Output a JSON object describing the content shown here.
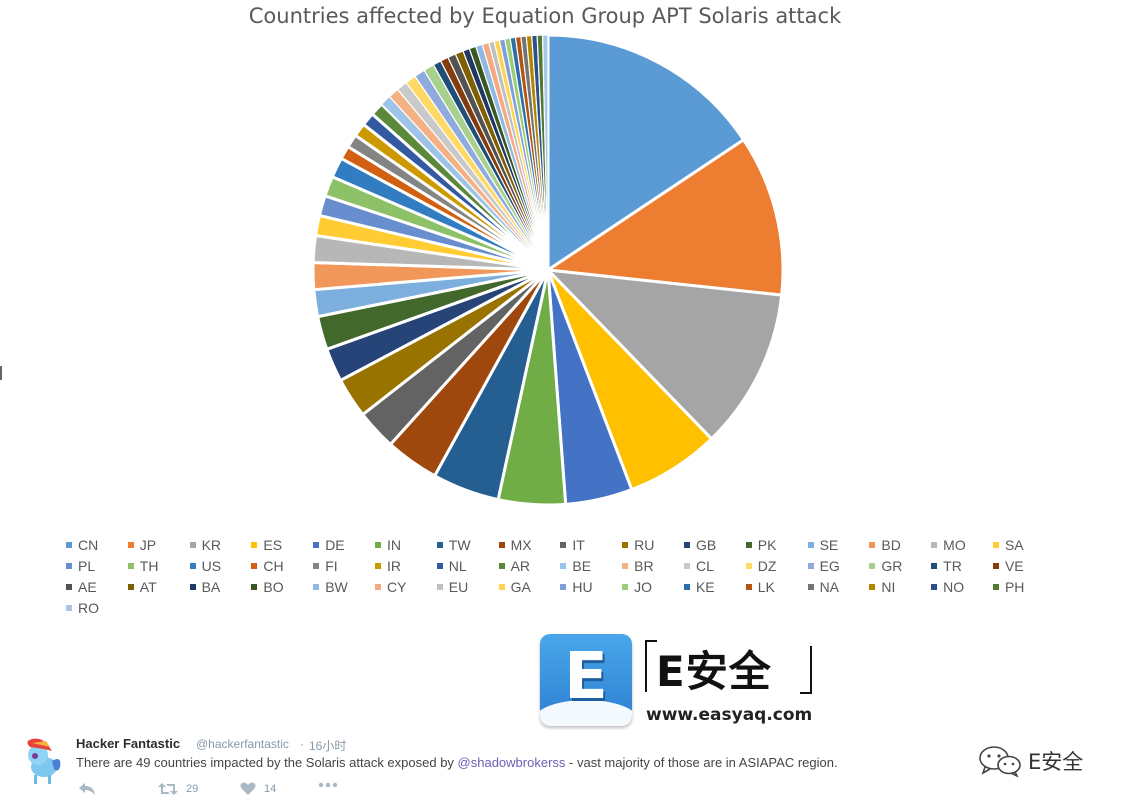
{
  "chart_data": {
    "type": "pie",
    "title": "Countries affected by Equation Group APT Solaris attack",
    "start_angle_deg": -90,
    "slice_border_color": "#ffffff",
    "legend_position": "bottom",
    "slices": [
      {
        "label": "CN",
        "value": 17.0,
        "color": "#5b9bd5"
      },
      {
        "label": "JP",
        "value": 12.0,
        "color": "#ed7d31"
      },
      {
        "label": "KR",
        "value": 12.0,
        "color": "#a5a5a5"
      },
      {
        "label": "ES",
        "value": 7.0,
        "color": "#ffc000"
      },
      {
        "label": "DE",
        "value": 5.0,
        "color": "#4472c4"
      },
      {
        "label": "IN",
        "value": 5.0,
        "color": "#70ad47"
      },
      {
        "label": "TW",
        "value": 5.0,
        "color": "#255e91"
      },
      {
        "label": "MX",
        "value": 4.0,
        "color": "#9e480e"
      },
      {
        "label": "IT",
        "value": 3.0,
        "color": "#636363"
      },
      {
        "label": "RU",
        "value": 3.0,
        "color": "#997300"
      },
      {
        "label": "GB",
        "value": 2.5,
        "color": "#264478"
      },
      {
        "label": "PK",
        "value": 2.5,
        "color": "#43682b"
      },
      {
        "label": "SE",
        "value": 2.0,
        "color": "#7cafdd"
      },
      {
        "label": "BD",
        "value": 2.0,
        "color": "#f1975a"
      },
      {
        "label": "MO",
        "value": 2.0,
        "color": "#b7b7b7"
      },
      {
        "label": "SA",
        "value": 1.5,
        "color": "#ffcd33"
      },
      {
        "label": "PL",
        "value": 1.5,
        "color": "#698ed0"
      },
      {
        "label": "TH",
        "value": 1.5,
        "color": "#8cc168"
      },
      {
        "label": "US",
        "value": 1.5,
        "color": "#327dc2"
      },
      {
        "label": "CH",
        "value": 1.0,
        "color": "#d26012"
      },
      {
        "label": "FI",
        "value": 1.0,
        "color": "#848484"
      },
      {
        "label": "IR",
        "value": 1.0,
        "color": "#cc9a00"
      },
      {
        "label": "NL",
        "value": 1.0,
        "color": "#335aa1"
      },
      {
        "label": "AR",
        "value": 1.0,
        "color": "#5a8a39"
      },
      {
        "label": "BE",
        "value": 0.8,
        "color": "#9dc3e6"
      },
      {
        "label": "BR",
        "value": 0.8,
        "color": "#f4b183"
      },
      {
        "label": "CL",
        "value": 0.8,
        "color": "#c9c9c9"
      },
      {
        "label": "DZ",
        "value": 0.8,
        "color": "#ffd966"
      },
      {
        "label": "EG",
        "value": 0.8,
        "color": "#8faadc"
      },
      {
        "label": "GR",
        "value": 0.8,
        "color": "#a9d18e"
      },
      {
        "label": "TR",
        "value": 0.6,
        "color": "#1f4e79"
      },
      {
        "label": "VE",
        "value": 0.6,
        "color": "#843c0c"
      },
      {
        "label": "AE",
        "value": 0.6,
        "color": "#525252"
      },
      {
        "label": "AT",
        "value": 0.6,
        "color": "#7f6000"
      },
      {
        "label": "BA",
        "value": 0.5,
        "color": "#203864"
      },
      {
        "label": "BO",
        "value": 0.5,
        "color": "#385723"
      },
      {
        "label": "BW",
        "value": 0.5,
        "color": "#8fb9e0"
      },
      {
        "label": "CY",
        "value": 0.5,
        "color": "#f4a981"
      },
      {
        "label": "EU",
        "value": 0.4,
        "color": "#c0c0c0"
      },
      {
        "label": "GA",
        "value": 0.4,
        "color": "#ffd54f"
      },
      {
        "label": "HU",
        "value": 0.4,
        "color": "#7f9fd8"
      },
      {
        "label": "JO",
        "value": 0.4,
        "color": "#9ccb7a"
      },
      {
        "label": "KE",
        "value": 0.4,
        "color": "#2b6ea8"
      },
      {
        "label": "LK",
        "value": 0.4,
        "color": "#b35410"
      },
      {
        "label": "NA",
        "value": 0.4,
        "color": "#737373"
      },
      {
        "label": "NI",
        "value": 0.4,
        "color": "#b38600"
      },
      {
        "label": "NO",
        "value": 0.4,
        "color": "#2e4f8c"
      },
      {
        "label": "PH",
        "value": 0.4,
        "color": "#4e7a32"
      },
      {
        "label": "RO",
        "value": 0.4,
        "color": "#a6c8e8"
      }
    ]
  },
  "logo": {
    "letter": "E",
    "brand": "E安全",
    "url": "www.easyaq.com",
    "tile_color": "#3a92e0"
  },
  "tweet": {
    "name": "Hacker Fantastic",
    "handle": "@hackerfantastic",
    "separator": "·",
    "time": "16小时",
    "text_before": "There are 49 countries impacted by the Solaris attack exposed by ",
    "mention": "@shadowbrokerss",
    "text_after": " - vast majority of those are in ASIAPAC region.",
    "retweets": "29",
    "likes": "14",
    "mention_color": "#6b5fb5"
  },
  "watermark": {
    "label": "E安全",
    "icon": "wechat-icon"
  }
}
